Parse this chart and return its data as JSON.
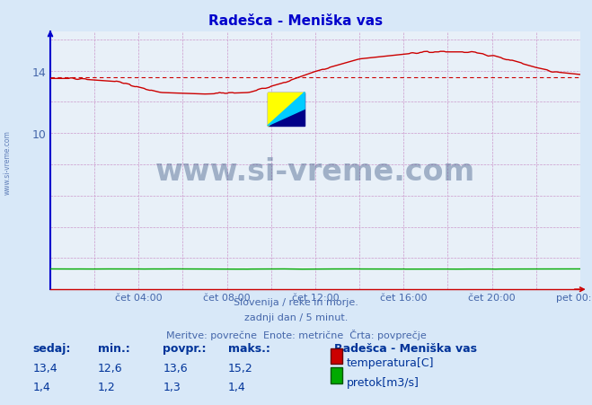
{
  "title": "Radešca - Meniška vas",
  "title_color": "#0000cc",
  "bg_color": "#d8e8f8",
  "plot_bg_color": "#e8f0f8",
  "grid_color_minor": "#cc99cc",
  "xlabel_color": "#4466aa",
  "ylim": [
    0,
    16.5
  ],
  "yticks": [
    10,
    14
  ],
  "xtick_labels": [
    "čet 04:00",
    "čet 08:00",
    "čet 12:00",
    "čet 16:00",
    "čet 20:00",
    "pet 00:00"
  ],
  "xtick_positions": [
    4,
    8,
    12,
    16,
    20,
    24
  ],
  "temp_avg": 13.6,
  "temp_color": "#cc0000",
  "flow_color": "#00aa00",
  "watermark_text": "www.si-vreme.com",
  "watermark_color": "#1a3a6e",
  "watermark_alpha": 0.35,
  "footnote_line1": "Slovenija / reke in morje.",
  "footnote_line2": "zadnji dan / 5 minut.",
  "footnote_line3": "Meritve: povrečne  Enote: metrične  Črta: povprečje",
  "footnote_color": "#4466aa",
  "legend_station": "Radešca - Meniška vas",
  "legend_temp_label": "temperatura[C]",
  "legend_flow_label": "pretok[m3/s]",
  "table_headers": [
    "sedaj:",
    "min.:",
    "povpr.:",
    "maks.:"
  ],
  "table_temp_row": [
    "13,4",
    "12,6",
    "13,6",
    "15,2"
  ],
  "table_flow_row": [
    "1,4",
    "1,2",
    "1,3",
    "1,4"
  ],
  "table_color": "#003399",
  "sidebar_text": "www.si-vreme.com",
  "sidebar_color": "#4466aa",
  "left_spine_color": "#0000cc",
  "bottom_spine_color": "#cc0000",
  "logo_yellow": "#ffff00",
  "logo_cyan": "#00ccff",
  "logo_darkblue": "#000088"
}
